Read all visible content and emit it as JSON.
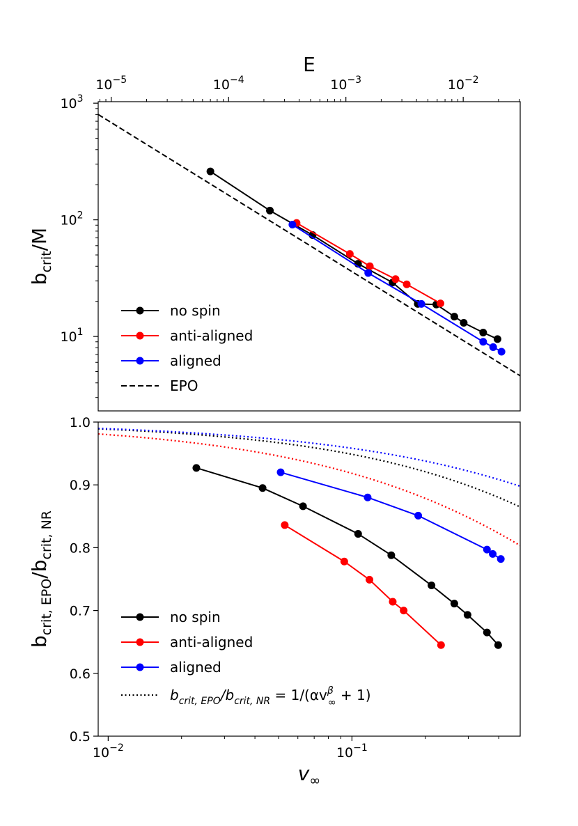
{
  "chart_data": [
    {
      "type": "line",
      "id": "top",
      "xscale": "log",
      "yscale": "log",
      "xlim": [
        7.74e-06,
        0.0306
      ],
      "ylim": [
        2.3,
        1030
      ],
      "xlabel": "E",
      "ylabel": "b",
      "ylabel_sub": "crit",
      "ylabel_tail": "/M",
      "xticks": [
        {
          "value": 1e-05,
          "base": "10",
          "exp": "−5"
        },
        {
          "value": 0.0001,
          "base": "10",
          "exp": "−4"
        },
        {
          "value": 0.001,
          "base": "10",
          "exp": "−3"
        },
        {
          "value": 0.01,
          "base": "10",
          "exp": "−2"
        }
      ],
      "yticks": [
        {
          "value": 10,
          "base": "10",
          "exp": "1"
        },
        {
          "value": 100,
          "base": "10",
          "exp": "2"
        },
        {
          "value": 1000,
          "base": "10",
          "exp": "3"
        }
      ],
      "series": [
        {
          "name": "no spin",
          "color": "#000000",
          "style": "solid-marker",
          "x": [
            7e-05,
            0.000225,
            0.00052,
            0.00127,
            0.0025,
            0.0041,
            0.0059,
            0.0084,
            0.0101,
            0.0148,
            0.0196
          ],
          "y": [
            260,
            120,
            74,
            42,
            29,
            19,
            18.8,
            14.8,
            13.1,
            10.8,
            9.5
          ]
        },
        {
          "name": "anti-aligned",
          "color": "#ff0000",
          "style": "solid-marker",
          "x": [
            0.00038,
            0.00108,
            0.0016,
            0.00265,
            0.0033,
            0.0064
          ],
          "y": [
            94,
            51,
            40,
            31,
            28,
            19.2
          ]
        },
        {
          "name": "aligned",
          "color": "#0000ff",
          "style": "solid-marker",
          "x": [
            0.00035,
            0.00155,
            0.0044,
            0.0148,
            0.018,
            0.0212
          ],
          "y": [
            91,
            35,
            19,
            9,
            8.1,
            7.4
          ]
        },
        {
          "name": "EPO",
          "color": "#000000",
          "style": "dashed",
          "x": [
            7.74e-06,
            0.0306
          ],
          "y": [
            800,
            4.6
          ]
        }
      ],
      "legend": [
        "no spin",
        "anti-aligned",
        "aligned",
        "EPO"
      ],
      "legend_position": "lower-left"
    },
    {
      "type": "line",
      "id": "bottom",
      "xscale": "log",
      "yscale": "linear",
      "xlim": [
        0.0091,
        0.49
      ],
      "ylim": [
        0.5,
        1.0
      ],
      "xlabel": "v",
      "xlabel_sub": "∞",
      "ylabel": "b",
      "ylabel_sub1": "crit, EPO",
      "ylabel_mid": "/b",
      "ylabel_sub2": "crit, NR",
      "xticks": [
        {
          "value": 0.01,
          "base": "10",
          "exp": "−2"
        },
        {
          "value": 0.1,
          "base": "10",
          "exp": "−1"
        }
      ],
      "yticks": [
        "0.5",
        "0.6",
        "0.7",
        "0.8",
        "0.9",
        "1.0"
      ],
      "series": [
        {
          "name": "no spin",
          "color": "#000000",
          "x": [
            0.023,
            0.043,
            0.063,
            0.106,
            0.145,
            0.212,
            0.263,
            0.298,
            0.358,
            0.398
          ],
          "y": [
            0.927,
            0.895,
            0.866,
            0.822,
            0.788,
            0.74,
            0.711,
            0.693,
            0.665,
            0.645
          ],
          "fit_alpha": 0.2516,
          "fit_beta": 0.6675
        },
        {
          "name": "anti-aligned",
          "color": "#ff0000",
          "x": [
            0.053,
            0.093,
            0.118,
            0.147,
            0.163,
            0.232
          ],
          "y": [
            0.836,
            0.778,
            0.749,
            0.714,
            0.7,
            0.645
          ],
          "fit_alpha": 0.3856,
          "fit_beta": 0.6372
        },
        {
          "name": "aligned",
          "color": "#0000ff",
          "x": [
            0.051,
            0.116,
            0.187,
            0.358,
            0.378,
            0.408
          ],
          "y": [
            0.92,
            0.88,
            0.851,
            0.797,
            0.79,
            0.782
          ],
          "fit_alpha": 0.1753,
          "fit_beta": 0.6048
        }
      ],
      "legend": [
        "no spin",
        "anti-aligned",
        "aligned"
      ],
      "legend_fit": {
        "lhs": "b",
        "lhs_sub1": "crit, EPO",
        "lhs_mid": "/b",
        "lhs_sub2": "crit, NR",
        "rhs_a": " = 1/(αv",
        "rhs_sup": "β",
        "rhs_sub": "∞",
        "rhs_b": " + 1)"
      },
      "legend_position": "lower-left"
    }
  ]
}
